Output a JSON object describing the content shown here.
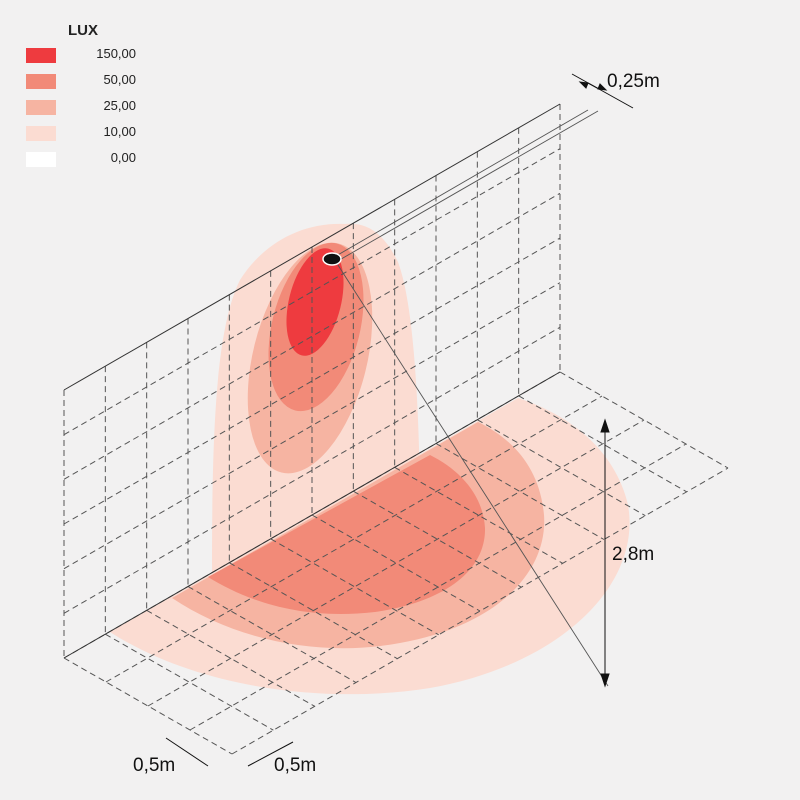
{
  "legend": {
    "title": "LUX",
    "items": [
      {
        "label": "150,00",
        "color": "#ee3b3f"
      },
      {
        "label": "50,00",
        "color": "#f28a78"
      },
      {
        "label": "25,00",
        "color": "#f6b4a2"
      },
      {
        "label": "10,00",
        "color": "#fbdcd2"
      },
      {
        "label": "0,00",
        "color": "#ffffff"
      }
    ]
  },
  "dimensions": {
    "wall_offset": "0,25m",
    "mount_height": "2,8m",
    "grid_depth": "0,5m",
    "grid_width": "0,5m"
  }
}
